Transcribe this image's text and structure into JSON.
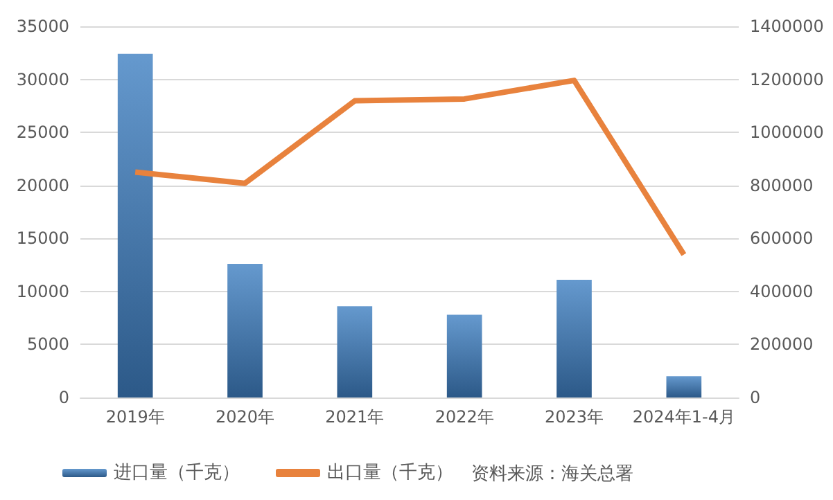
{
  "chart_data": {
    "type": "bar",
    "categories": [
      "2019年",
      "2020年",
      "2021年",
      "2022年",
      "2023年",
      "2024年1-4月"
    ],
    "series": [
      {
        "name": "进口量（千克）",
        "color": "#3f7fc2",
        "values": [
          32400,
          12600,
          8600,
          7800,
          11100,
          2000
        ]
      },
      {
        "name": "出口量（千克）",
        "type": "line",
        "axis": "y2",
        "color": "#e8823d",
        "values": [
          850000,
          808000,
          1119000,
          1126000,
          1196000,
          539000
        ]
      }
    ],
    "ylim": [
      0,
      35000
    ],
    "yticks": [
      0,
      5000,
      10000,
      15000,
      20000,
      25000,
      30000,
      35000
    ],
    "y2lim": [
      0,
      1400000
    ],
    "y2ticks": [
      0,
      200000,
      400000,
      600000,
      800000,
      1000000,
      1200000,
      1400000
    ],
    "grid": "y",
    "legend": "bottom",
    "marker": "none",
    "annotations": [
      "资料来源：海关总署"
    ]
  }
}
